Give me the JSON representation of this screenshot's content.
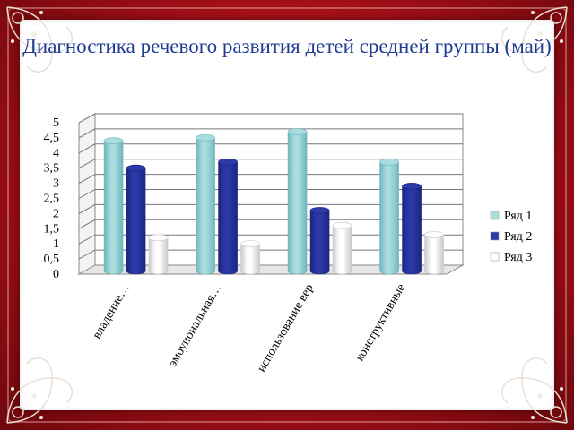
{
  "title": "Диагностика речевого развития детей средней группы (май)",
  "colors": {
    "background": "#b3121a",
    "title": "#1f3a93",
    "series1": "#a9dde0",
    "series2": "#2c3aa8",
    "series3": "#ffffff"
  },
  "chart_data": {
    "type": "bar",
    "title": "",
    "xlabel": "",
    "ylabel": "",
    "ylim": [
      0,
      5
    ],
    "yticks": [
      "0",
      "0,5",
      "1",
      "1,5",
      "2",
      "2,5",
      "3",
      "3,5",
      "4",
      "4,5",
      "5"
    ],
    "categories": [
      "владение…",
      "эмоуиональная…",
      "использование вер",
      "конструктивные"
    ],
    "series": [
      {
        "name": "Ряд 1",
        "values": [
          4.3,
          4.4,
          4.6,
          3.6
        ]
      },
      {
        "name": "Ряд 2",
        "values": [
          3.4,
          3.6,
          2.0,
          2.8
        ]
      },
      {
        "name": "Ряд 3",
        "values": [
          1.1,
          0.9,
          1.5,
          1.2
        ]
      }
    ],
    "grid": true,
    "legend": "right"
  }
}
